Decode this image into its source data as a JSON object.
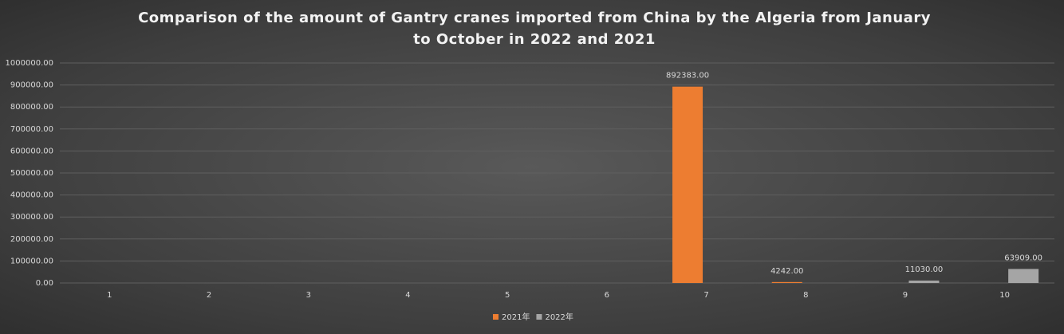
{
  "chart_data": {
    "type": "bar",
    "title": "Comparison of the amount of Gantry cranes imported from China by the Algeria from January to October in 2022 and 2021",
    "categories": [
      "1",
      "2",
      "3",
      "4",
      "5",
      "6",
      "7",
      "8",
      "9",
      "10"
    ],
    "series": [
      {
        "name": "2021年",
        "color": "#ed7d31",
        "values": [
          null,
          null,
          null,
          null,
          null,
          null,
          892383,
          4242,
          null,
          null
        ],
        "value_labels": [
          null,
          null,
          null,
          null,
          null,
          null,
          "892383.00",
          "4242.00",
          null,
          null
        ]
      },
      {
        "name": "2022年",
        "color": "#a5a5a5",
        "values": [
          null,
          null,
          null,
          null,
          null,
          null,
          null,
          null,
          11030,
          63909
        ],
        "value_labels": [
          null,
          null,
          null,
          null,
          null,
          null,
          null,
          null,
          "11030.00",
          "63909.00"
        ]
      }
    ],
    "ylim": [
      0,
      1000000
    ],
    "yticks": [
      {
        "value": 0,
        "label": "0.00"
      },
      {
        "value": 100000,
        "label": "100000.00"
      },
      {
        "value": 200000,
        "label": "200000.00"
      },
      {
        "value": 300000,
        "label": "300000.00"
      },
      {
        "value": 400000,
        "label": "400000.00"
      },
      {
        "value": 500000,
        "label": "500000.00"
      },
      {
        "value": 600000,
        "label": "600000.00"
      },
      {
        "value": 700000,
        "label": "700000.00"
      },
      {
        "value": 800000,
        "label": "800000.00"
      },
      {
        "value": 900000,
        "label": "900000.00"
      },
      {
        "value": 1000000,
        "label": "1000000.00"
      }
    ],
    "grid": true,
    "legend": "bottom"
  }
}
